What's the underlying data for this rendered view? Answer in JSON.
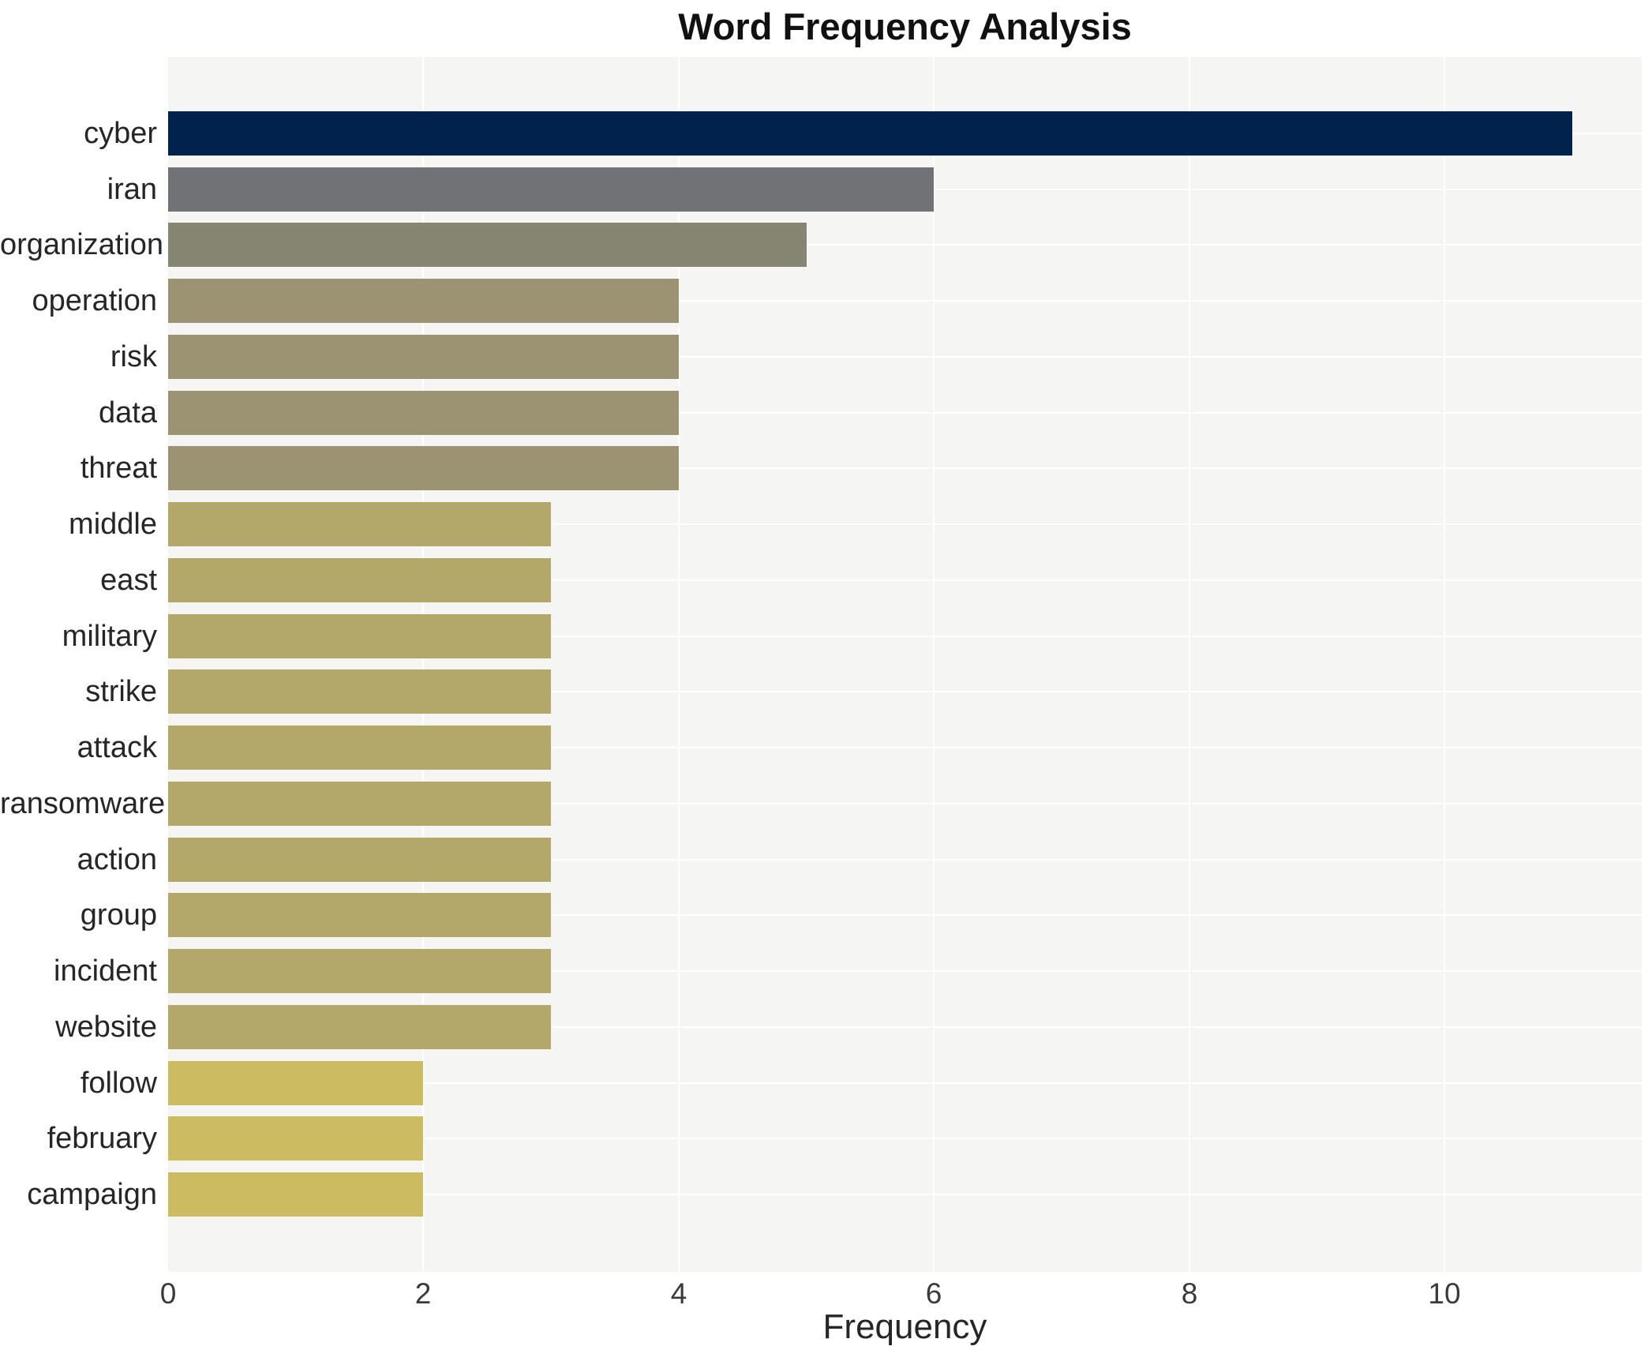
{
  "title": "Word Frequency Analysis",
  "chart_data": {
    "type": "bar",
    "orientation": "horizontal",
    "title": "Word Frequency Analysis",
    "xlabel": "Frequency",
    "ylabel": "",
    "categories": [
      "cyber",
      "iran",
      "organization",
      "operation",
      "risk",
      "data",
      "threat",
      "middle",
      "east",
      "military",
      "strike",
      "attack",
      "ransomware",
      "action",
      "group",
      "incident",
      "website",
      "follow",
      "february",
      "campaign"
    ],
    "values": [
      11,
      6,
      5,
      4,
      4,
      4,
      4,
      3,
      3,
      3,
      3,
      3,
      3,
      3,
      3,
      3,
      3,
      2,
      2,
      2
    ],
    "bar_colors": [
      "#02224e",
      "#717276",
      "#868572",
      "#9c9373",
      "#9c9373",
      "#9c9373",
      "#9c9373",
      "#b3a869",
      "#b3a869",
      "#b3a869",
      "#b3a869",
      "#b3a869",
      "#b3a869",
      "#b3a869",
      "#b3a869",
      "#b3a869",
      "#b3a869",
      "#ccbb61",
      "#ccbb61",
      "#ccbb61"
    ],
    "x_ticks": [
      0,
      2,
      4,
      6,
      8,
      10
    ],
    "xlim": [
      0,
      11.55
    ],
    "legend_position": "none",
    "grid": {
      "vertical_major_step": 2,
      "horizontal_at_row_centers": true
    },
    "panel_bg": "#f5f5f4",
    "grid_color": "#ffffff",
    "title_color": "#111111",
    "label_color": "#262626",
    "tick_color": "#3a3a3a"
  }
}
